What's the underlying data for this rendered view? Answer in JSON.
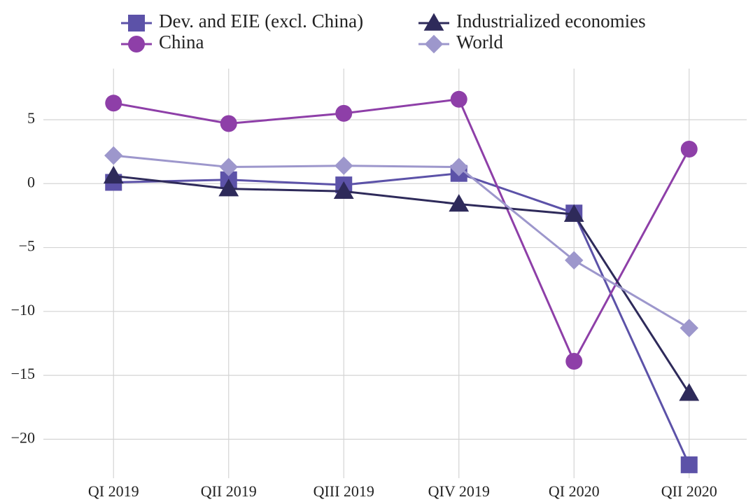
{
  "chart_data": {
    "type": "line",
    "categories": [
      "QI 2019",
      "QII 2019",
      "QIII 2019",
      "QIV 2019",
      "QI 2020",
      "QII 2020"
    ],
    "series": [
      {
        "name": "Dev. and EIE (excl. China)",
        "color": "#5c52a8",
        "marker": "square",
        "values": [
          0.1,
          0.3,
          -0.1,
          0.8,
          -2.3,
          -22.0
        ]
      },
      {
        "name": "China",
        "color": "#8e3fa8",
        "marker": "circle",
        "values": [
          6.3,
          4.7,
          5.5,
          6.6,
          -13.9,
          2.7
        ]
      },
      {
        "name": "Industrialized economies",
        "color": "#2e2a5a",
        "marker": "triangle",
        "values": [
          0.6,
          -0.4,
          -0.6,
          -1.6,
          -2.4,
          -16.4
        ]
      },
      {
        "name": "World",
        "color": "#9d97cc",
        "marker": "diamond",
        "values": [
          2.2,
          1.3,
          1.4,
          1.3,
          -6.0,
          -11.3
        ]
      }
    ],
    "ylim": [
      -22.5,
      9
    ],
    "yticks": [
      5,
      0,
      {
        "value": -5,
        "label": "−5"
      },
      {
        "value": -10,
        "label": "−10"
      },
      {
        "value": -15,
        "label": "−15"
      },
      {
        "value": -20,
        "label": "−20"
      }
    ],
    "grid": true
  }
}
